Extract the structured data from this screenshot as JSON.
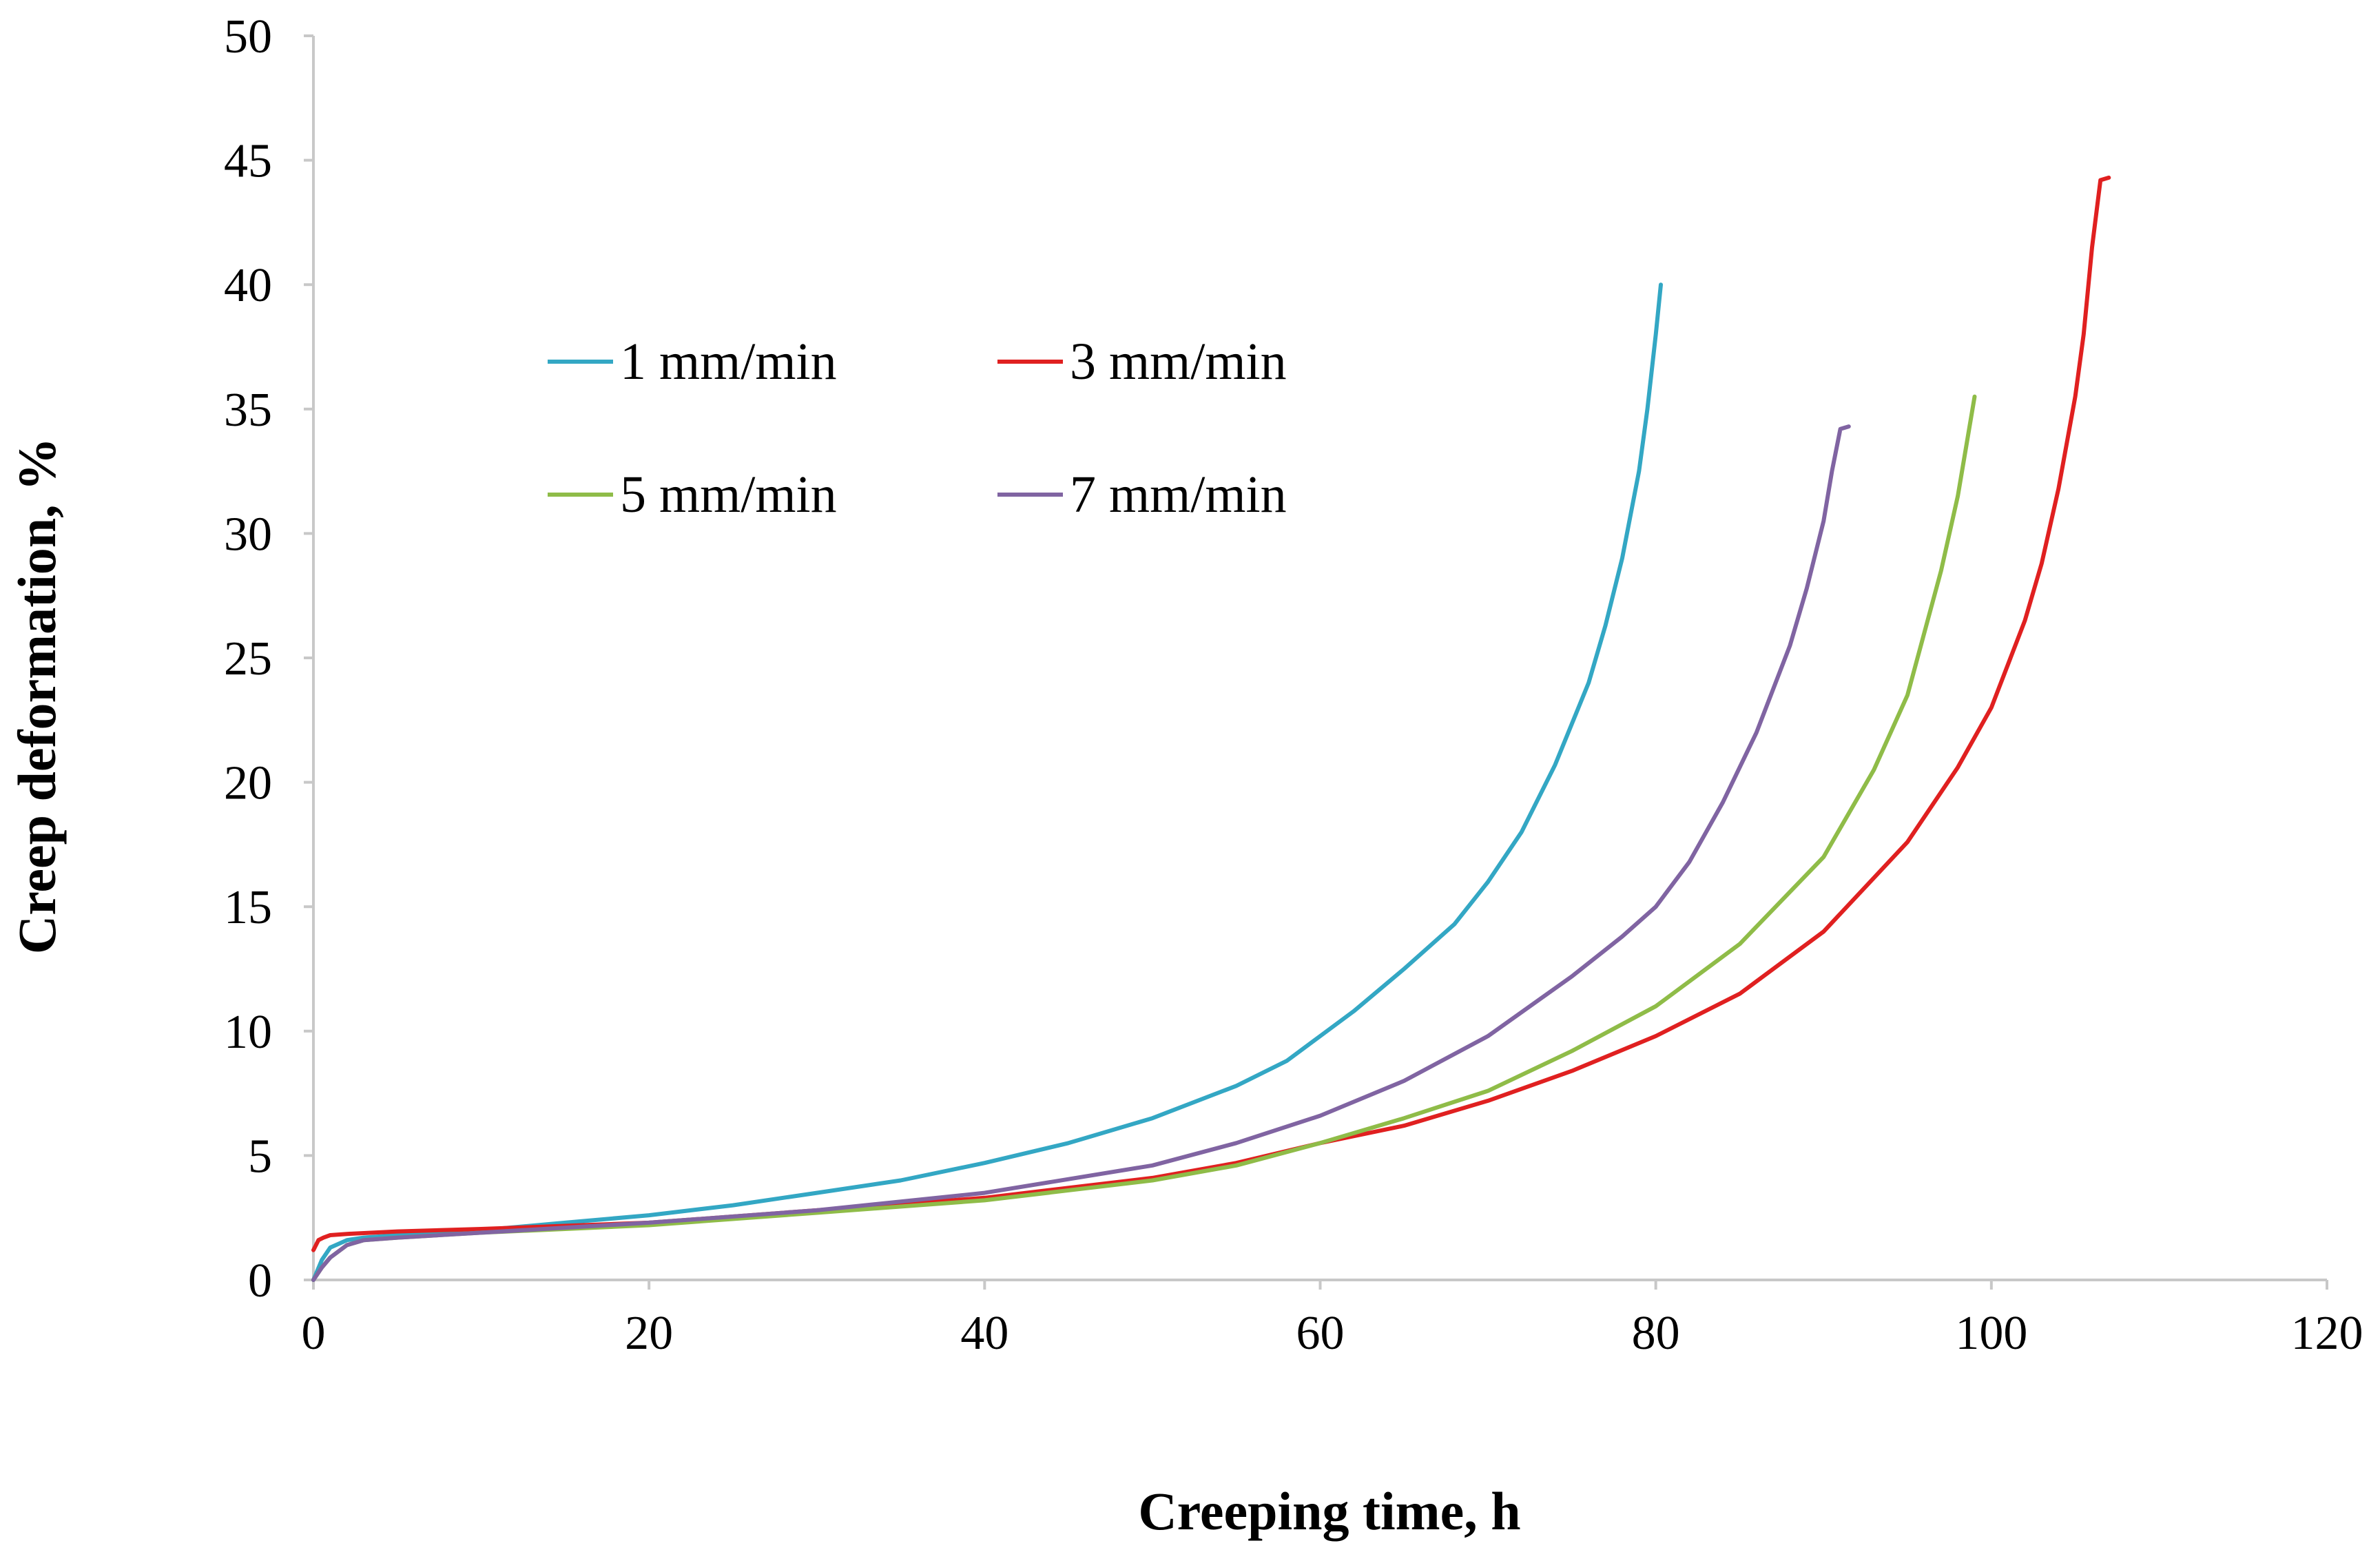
{
  "chart_data": {
    "type": "line",
    "title": "",
    "xlabel": "Creeping time, h",
    "ylabel": "Creep deformation, %",
    "xlim": [
      0,
      120
    ],
    "ylim": [
      0,
      50
    ],
    "x_ticks": [
      0,
      20,
      40,
      60,
      80,
      100,
      120
    ],
    "y_ticks": [
      0,
      5,
      10,
      15,
      20,
      25,
      30,
      35,
      40,
      45,
      50
    ],
    "grid": false,
    "legend_position": "upper-left inside plot, two columns",
    "series": [
      {
        "name": "1 mm/min",
        "color": "#33a7c4",
        "x": [
          0,
          0.5,
          1,
          2,
          3,
          5,
          10,
          15,
          20,
          25,
          30,
          35,
          40,
          45,
          50,
          55,
          58,
          60,
          62,
          65,
          68,
          70,
          72,
          74,
          76,
          77,
          78,
          79,
          79.5,
          80,
          80.3
        ],
        "y": [
          0,
          0.8,
          1.3,
          1.6,
          1.7,
          1.8,
          2.0,
          2.3,
          2.6,
          3.0,
          3.5,
          4.0,
          4.7,
          5.5,
          6.5,
          7.8,
          8.8,
          9.8,
          10.8,
          12.5,
          14.3,
          16.0,
          18.0,
          20.7,
          24.0,
          26.3,
          29.0,
          32.5,
          35.0,
          38.0,
          40.0
        ]
      },
      {
        "name": "3 mm/min",
        "color": "#e02020",
        "x": [
          0,
          0.3,
          0.6,
          1,
          2,
          5,
          10,
          20,
          30,
          40,
          50,
          55,
          60,
          65,
          70,
          75,
          80,
          85,
          90,
          95,
          98,
          100,
          102,
          103,
          104,
          105,
          105.5,
          106,
          106.5,
          107
        ],
        "y": [
          1.2,
          1.6,
          1.7,
          1.8,
          1.85,
          1.95,
          2.05,
          2.3,
          2.8,
          3.3,
          4.1,
          4.7,
          5.5,
          6.2,
          7.2,
          8.4,
          9.8,
          11.5,
          14.0,
          17.6,
          20.6,
          23.0,
          26.5,
          28.8,
          31.8,
          35.5,
          38.0,
          41.5,
          44.2,
          44.3
        ]
      },
      {
        "name": "5 mm/min",
        "color": "#8fbc48",
        "x": [
          0,
          0.5,
          1,
          2,
          3,
          5,
          10,
          20,
          30,
          40,
          50,
          55,
          60,
          65,
          70,
          75,
          80,
          85,
          90,
          93,
          95,
          96,
          97,
          98,
          98.5,
          99
        ],
        "y": [
          0,
          0.5,
          0.9,
          1.4,
          1.6,
          1.7,
          1.9,
          2.2,
          2.7,
          3.2,
          4.0,
          4.6,
          5.5,
          6.5,
          7.6,
          9.2,
          11.0,
          13.5,
          17.0,
          20.5,
          23.5,
          26.0,
          28.5,
          31.5,
          33.5,
          35.5
        ]
      },
      {
        "name": "7 mm/min",
        "color": "#8064a2",
        "x": [
          0,
          0.5,
          1,
          2,
          3,
          5,
          10,
          20,
          30,
          40,
          50,
          55,
          60,
          65,
          70,
          75,
          78,
          80,
          82,
          84,
          86,
          88,
          89,
          90,
          90.5,
          91,
          91.5
        ],
        "y": [
          0,
          0.5,
          0.9,
          1.4,
          1.6,
          1.7,
          1.9,
          2.3,
          2.8,
          3.5,
          4.6,
          5.5,
          6.6,
          8.0,
          9.8,
          12.2,
          13.8,
          15.0,
          16.8,
          19.2,
          22.0,
          25.5,
          27.8,
          30.5,
          32.5,
          34.2,
          34.3
        ]
      }
    ]
  }
}
